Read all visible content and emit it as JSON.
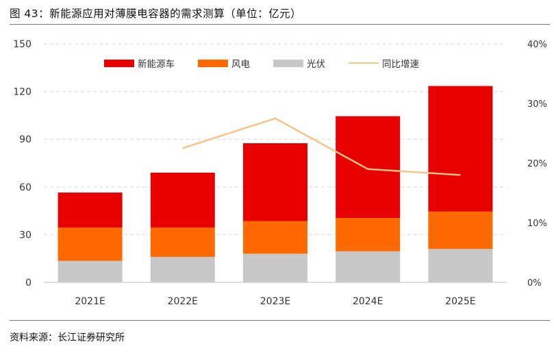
{
  "figure": {
    "title": "图 43：新能源应用对薄膜电容器的需求测算（单位：亿元）",
    "source": "资料来源：长江证券研究所"
  },
  "colors": {
    "ev": "#e60000",
    "wind": "#ff6a00",
    "pv": "#c8c8c8",
    "growth": "#f5c48a",
    "grid": "#d9d9d9",
    "axis_text": "#333333"
  },
  "chart_data": {
    "type": "bar",
    "stacked": true,
    "categories": [
      "2021E",
      "2022E",
      "2023E",
      "2024E",
      "2025E"
    ],
    "series": [
      {
        "name": "光伏",
        "values": [
          13.5,
          16,
          18,
          19.5,
          21
        ],
        "color_key": "pv"
      },
      {
        "name": "风电",
        "values": [
          21,
          18.5,
          20.5,
          21,
          23.5
        ],
        "color_key": "wind"
      },
      {
        "name": "新能源车",
        "values": [
          22,
          34.5,
          49,
          64,
          79
        ],
        "color_key": "ev"
      }
    ],
    "line_series": {
      "name": "同比增速",
      "values": [
        null,
        22.5,
        27.5,
        19,
        18
      ],
      "axis": "right",
      "color_key": "growth"
    },
    "ylim_left": [
      0,
      150
    ],
    "yticks_left": [
      "0",
      "30",
      "60",
      "90",
      "120",
      "150"
    ],
    "ylim_right": [
      0,
      40
    ],
    "yticks_right": [
      "0%",
      "10%",
      "20%",
      "30%",
      "40%"
    ],
    "legend": [
      "新能源车",
      "风电",
      "光伏",
      "同比增速"
    ],
    "legend_position": "top",
    "grid": true
  }
}
